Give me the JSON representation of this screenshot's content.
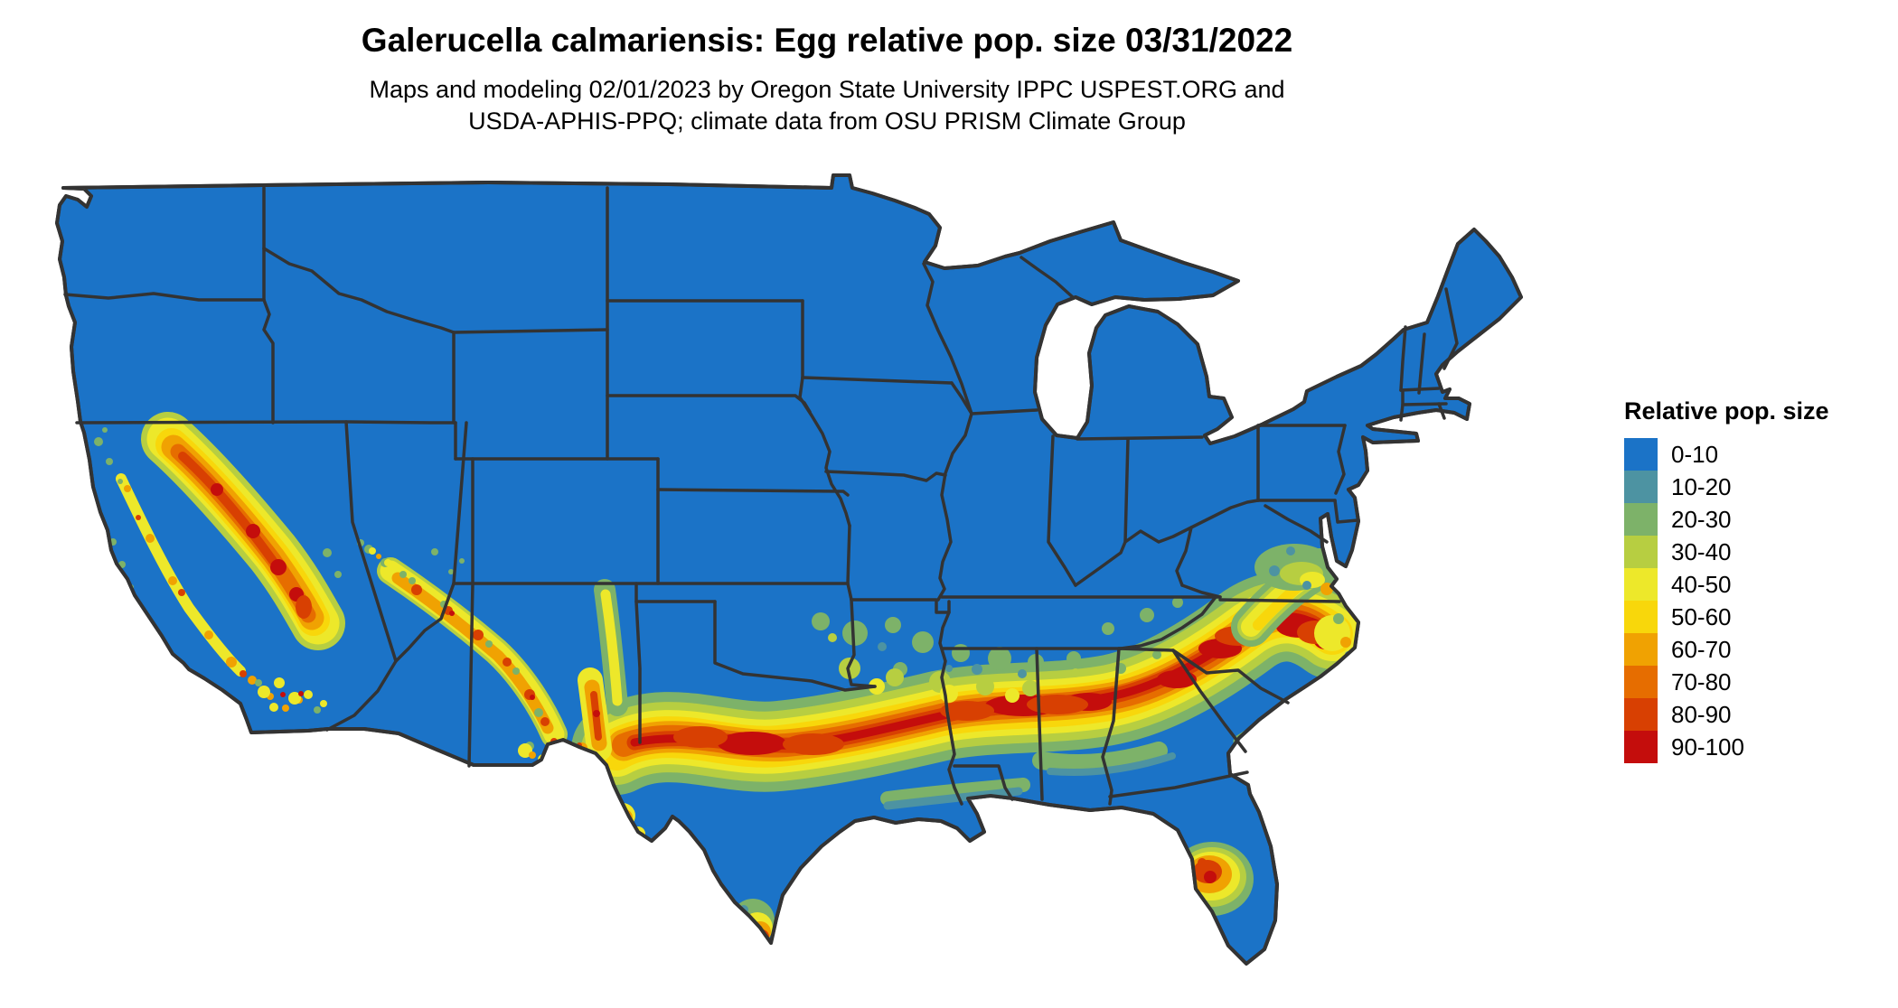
{
  "header": {
    "title": "Galerucella calmariensis: Egg relative pop. size 03/31/2022",
    "subtitle_line1": "Maps and modeling 02/01/2023 by Oregon State University IPPC USPEST.ORG and",
    "subtitle_line2": "USDA-APHIS-PPQ; climate data from OSU PRISM Climate Group"
  },
  "legend": {
    "title": "Relative pop. size",
    "items": [
      {
        "label": "0-10",
        "color": "#1B73C7"
      },
      {
        "label": "10-20",
        "color": "#4D93A2"
      },
      {
        "label": "20-30",
        "color": "#7DB269"
      },
      {
        "label": "30-40",
        "color": "#B7CE41"
      },
      {
        "label": "40-50",
        "color": "#EDE82A"
      },
      {
        "label": "50-60",
        "color": "#F8D70B"
      },
      {
        "label": "60-70",
        "color": "#F0A202"
      },
      {
        "label": "70-80",
        "color": "#E66D00"
      },
      {
        "label": "80-90",
        "color": "#D84002"
      },
      {
        "label": "90-100",
        "color": "#C40D0C"
      }
    ]
  },
  "palette": {
    "c0": "#1B73C7",
    "c1": "#4D93A2",
    "c2": "#7DB269",
    "c3": "#B7CE41",
    "c4": "#EDE82A",
    "c5": "#F8D70B",
    "c6": "#F0A202",
    "c7": "#E66D00",
    "c8": "#D84002",
    "c9": "#C40D0C",
    "border": "#333333",
    "water": "#ffffff"
  },
  "map": {
    "region_label": "Continental United States"
  }
}
